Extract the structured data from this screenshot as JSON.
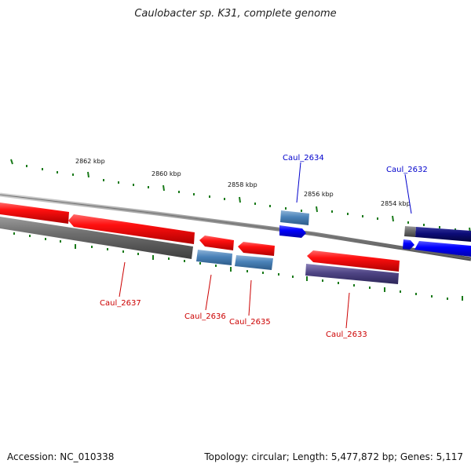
{
  "title": "Caulobacter sp. K31, complete genome",
  "accession": "Accession: NC_010338",
  "stats": "Topology: circular; Length: 5,477,872 bp; Genes: 5,117",
  "scale_labels": [
    "2862 kbp",
    "2860 kbp",
    "2858 kbp",
    "2856 kbp",
    "2854 kbp"
  ],
  "gene_labels": {
    "caul_2637": "Caul_2637",
    "caul_2636": "Caul_2636",
    "caul_2635": "Caul_2635",
    "caul_2634": "Caul_2634",
    "caul_2633": "Caul_2633",
    "caul_2632": "Caul_2632"
  },
  "colors": {
    "reverse_strand_label": "#cc0000",
    "forward_strand_label": "#0000cc",
    "tick": "#1a7a1a",
    "cds_reverse": "#ff1a1a",
    "cds_forward": "#0a0aff",
    "backbone": "#8c8c8c"
  }
}
